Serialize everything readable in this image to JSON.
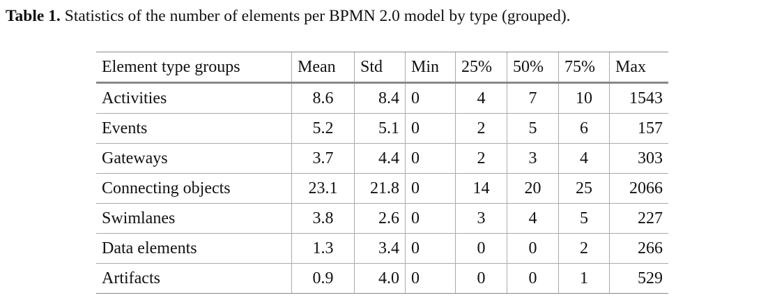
{
  "caption": {
    "label": "Table 1.",
    "text": "Statistics of the number of elements per BPMN 2.0 model by type (grouped)."
  },
  "table": {
    "header": [
      "Element type groups",
      "Mean",
      "Std",
      "Min",
      "25%",
      "50%",
      "75%",
      "Max"
    ],
    "rows": [
      [
        "Activities",
        "8.6",
        "8.4",
        "0",
        "4",
        "7",
        "10",
        "1543"
      ],
      [
        "Events",
        "5.2",
        "5.1",
        "0",
        "2",
        "5",
        "6",
        "157"
      ],
      [
        "Gateways",
        "3.7",
        "4.4",
        "0",
        "2",
        "3",
        "4",
        "303"
      ],
      [
        "Connecting objects",
        "23.1",
        "21.8",
        "0",
        "14",
        "20",
        "25",
        "2066"
      ],
      [
        "Swimlanes",
        "3.8",
        "2.6",
        "0",
        "3",
        "4",
        "5",
        "227"
      ],
      [
        "Data elements",
        "1.3",
        "3.4",
        "0",
        "0",
        "0",
        "2",
        "266"
      ],
      [
        "Artifacts",
        "0.9",
        "4.0",
        "0",
        "0",
        "0",
        "1",
        "529"
      ]
    ]
  }
}
